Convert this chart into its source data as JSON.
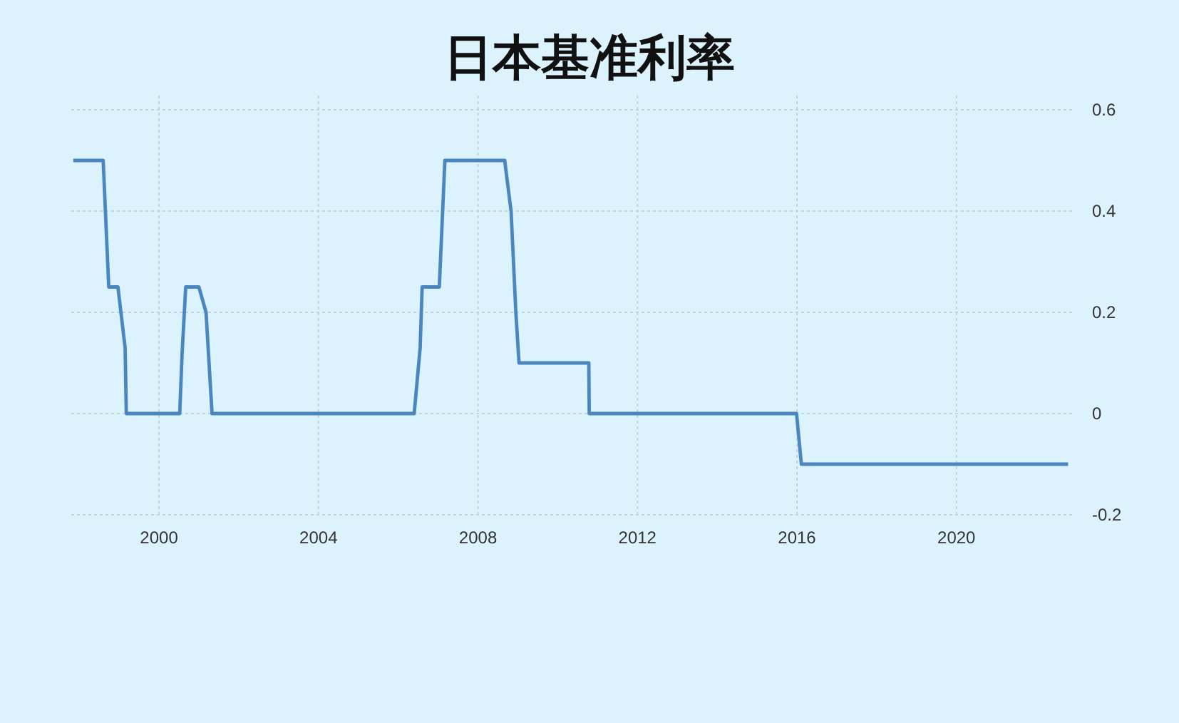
{
  "chart_data": {
    "type": "line",
    "title": "日本基准利率",
    "x": [
      1997.85,
      1998.6,
      1998.74,
      1998.97,
      1999.15,
      1999.18,
      2000.52,
      2000.58,
      2000.67,
      2001.0,
      2001.18,
      2001.33,
      2006.4,
      2006.55,
      2006.6,
      2007.03,
      2007.17,
      2008.67,
      2008.83,
      2008.95,
      2009.03,
      2010.78,
      2010.79,
      2015.99,
      2016.11,
      2022.8
    ],
    "series": [
      {
        "color": "#4a86c0",
        "values": [
          0.5,
          0.5,
          0.25,
          0.25,
          0.13,
          0,
          0,
          0.12,
          0.25,
          0.25,
          0.2,
          0,
          0,
          0.13,
          0.25,
          0.25,
          0.5,
          0.5,
          0.4,
          0.2,
          0.1,
          0.1,
          0,
          0,
          -0.1,
          -0.1
        ]
      }
    ],
    "xlim": [
      1997.8,
      2022.9
    ],
    "xticks": [
      2000,
      2004,
      2008,
      2012,
      2016,
      2020
    ],
    "ylim": [
      -0.2,
      0.6
    ],
    "yticks": [
      -0.2,
      0,
      0.2,
      0.4,
      0.6
    ],
    "grid": true,
    "line_style": "solid",
    "marker": "none"
  }
}
